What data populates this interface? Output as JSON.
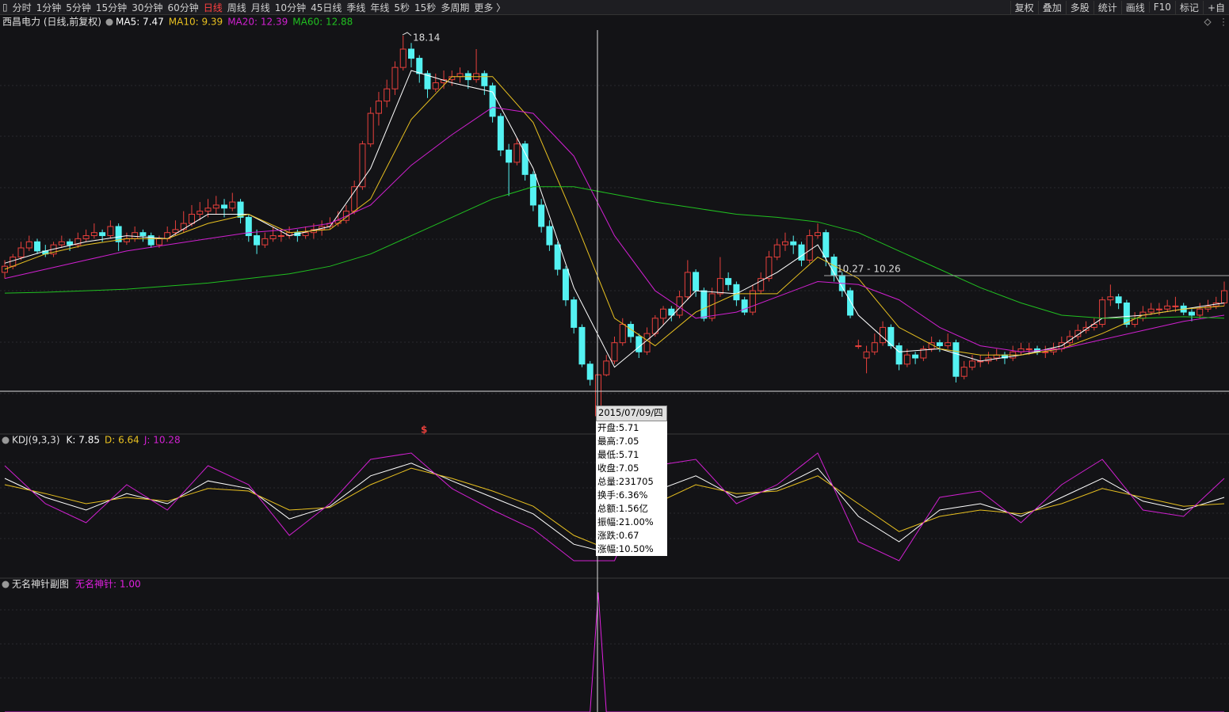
{
  "toolbar": {
    "left": [
      "分时",
      "1分钟",
      "5分钟",
      "15分钟",
      "30分钟",
      "60分钟",
      "日线",
      "周线",
      "月线",
      "10分钟",
      "45日线",
      "季线",
      "年线",
      "5秒",
      "15秒",
      "多周期",
      "更多 〉"
    ],
    "active_index": 6,
    "right": [
      "复权",
      "叠加",
      "多股",
      "统计",
      "画线",
      "F10",
      "标记",
      "+自"
    ]
  },
  "main_chart": {
    "title": "西昌电力 (日线,前复权)",
    "peak_label": "18.14",
    "range_label": "10.27 - 10.26",
    "signal": "$",
    "up_color": "#e8403c",
    "down_color": "#54f2f2",
    "candles": [
      [
        10.4,
        10.8,
        10.2,
        10.6
      ],
      [
        10.6,
        11.0,
        10.5,
        10.9
      ],
      [
        10.9,
        11.4,
        10.8,
        11.2
      ],
      [
        11.2,
        11.6,
        11.1,
        11.4
      ],
      [
        11.4,
        11.5,
        11.0,
        11.1
      ],
      [
        11.1,
        11.3,
        10.9,
        11.0
      ],
      [
        11.0,
        11.4,
        10.9,
        11.3
      ],
      [
        11.3,
        11.6,
        11.2,
        11.4
      ],
      [
        11.4,
        11.5,
        11.1,
        11.3
      ],
      [
        11.3,
        11.7,
        11.2,
        11.5
      ],
      [
        11.5,
        11.8,
        11.4,
        11.6
      ],
      [
        11.6,
        12.0,
        11.5,
        11.7
      ],
      [
        11.7,
        11.8,
        11.4,
        11.6
      ],
      [
        11.6,
        12.1,
        11.5,
        11.9
      ],
      [
        11.9,
        12.0,
        11.1,
        11.4
      ],
      [
        11.4,
        11.7,
        11.3,
        11.5
      ],
      [
        11.5,
        11.9,
        11.4,
        11.7
      ],
      [
        11.7,
        11.8,
        11.4,
        11.6
      ],
      [
        11.6,
        11.7,
        11.2,
        11.3
      ],
      [
        11.3,
        11.6,
        11.2,
        11.5
      ],
      [
        11.5,
        11.9,
        11.4,
        11.7
      ],
      [
        11.7,
        12.1,
        11.6,
        11.8
      ],
      [
        11.8,
        12.4,
        11.7,
        12.0
      ],
      [
        12.0,
        12.6,
        11.9,
        12.3
      ],
      [
        12.3,
        12.7,
        12.1,
        12.4
      ],
      [
        12.4,
        12.8,
        12.2,
        12.5
      ],
      [
        12.5,
        12.9,
        12.3,
        12.6
      ],
      [
        12.6,
        12.8,
        12.2,
        12.5
      ],
      [
        12.5,
        13.0,
        12.4,
        12.7
      ],
      [
        12.7,
        12.8,
        12.0,
        12.2
      ],
      [
        12.2,
        12.3,
        11.4,
        11.6
      ],
      [
        11.6,
        11.8,
        11.0,
        11.3
      ],
      [
        11.3,
        11.7,
        11.2,
        11.5
      ],
      [
        11.5,
        11.9,
        11.4,
        11.6
      ],
      [
        11.6,
        11.8,
        11.4,
        11.6
      ],
      [
        11.6,
        11.9,
        11.5,
        11.7
      ],
      [
        11.7,
        11.8,
        11.4,
        11.6
      ],
      [
        11.6,
        11.9,
        11.5,
        11.7
      ],
      [
        11.7,
        12.0,
        11.5,
        11.8
      ],
      [
        11.8,
        12.1,
        11.6,
        11.9
      ],
      [
        11.9,
        12.2,
        11.8,
        12.0
      ],
      [
        12.0,
        12.4,
        11.9,
        12.1
      ],
      [
        12.1,
        12.6,
        12.0,
        12.4
      ],
      [
        12.4,
        13.4,
        12.3,
        13.2
      ],
      [
        13.2,
        14.7,
        13.1,
        14.6
      ],
      [
        14.6,
        15.8,
        14.5,
        15.6
      ],
      [
        15.6,
        16.3,
        15.2,
        16.0
      ],
      [
        16.0,
        16.7,
        15.8,
        16.4
      ],
      [
        16.4,
        17.3,
        16.2,
        17.1
      ],
      [
        17.1,
        18.14,
        17.0,
        17.7
      ],
      [
        17.7,
        17.9,
        17.1,
        17.4
      ],
      [
        17.4,
        17.5,
        16.6,
        16.9
      ],
      [
        16.9,
        17.0,
        16.1,
        16.4
      ],
      [
        16.4,
        16.9,
        16.3,
        16.6
      ],
      [
        16.6,
        17.0,
        16.4,
        16.7
      ],
      [
        16.7,
        17.0,
        16.5,
        16.8
      ],
      [
        16.8,
        17.1,
        16.6,
        16.9
      ],
      [
        16.9,
        17.0,
        16.4,
        16.7
      ],
      [
        16.7,
        17.7,
        16.6,
        16.9
      ],
      [
        16.9,
        17.0,
        16.2,
        16.5
      ],
      [
        16.5,
        16.6,
        15.3,
        15.5
      ],
      [
        15.5,
        15.6,
        14.2,
        14.4
      ],
      [
        14.4,
        14.6,
        12.9,
        14.0
      ],
      [
        14.0,
        14.8,
        13.9,
        14.6
      ],
      [
        14.6,
        14.7,
        13.4,
        13.6
      ],
      [
        13.6,
        13.7,
        12.4,
        12.6
      ],
      [
        12.6,
        12.8,
        11.7,
        11.9
      ],
      [
        11.9,
        12.1,
        11.1,
        11.3
      ],
      [
        11.3,
        11.4,
        10.3,
        10.5
      ],
      [
        10.5,
        10.6,
        9.3,
        9.5
      ],
      [
        9.5,
        9.6,
        8.4,
        8.6
      ],
      [
        8.6,
        8.7,
        7.3,
        7.4
      ],
      [
        7.4,
        7.5,
        6.7,
        6.9
      ],
      [
        5.71,
        7.05,
        5.71,
        7.05
      ],
      [
        7.05,
        7.7,
        7.0,
        7.5
      ],
      [
        7.5,
        8.3,
        7.4,
        8.1
      ],
      [
        8.1,
        8.9,
        8.0,
        8.7
      ],
      [
        8.7,
        8.8,
        8.1,
        8.3
      ],
      [
        8.3,
        8.4,
        7.6,
        7.8
      ],
      [
        7.8,
        8.6,
        7.7,
        8.4
      ],
      [
        8.4,
        9.0,
        8.3,
        8.9
      ],
      [
        8.9,
        9.3,
        8.7,
        9.2
      ],
      [
        9.2,
        9.3,
        8.8,
        9.0
      ],
      [
        9.0,
        9.8,
        8.9,
        9.6
      ],
      [
        9.6,
        10.8,
        9.5,
        10.4
      ],
      [
        10.4,
        10.5,
        9.6,
        9.8
      ],
      [
        9.8,
        9.9,
        8.8,
        8.9
      ],
      [
        8.9,
        9.9,
        8.8,
        9.7
      ],
      [
        9.7,
        10.9,
        9.6,
        10.2
      ],
      [
        10.2,
        10.4,
        9.8,
        10.0
      ],
      [
        10.0,
        10.1,
        9.3,
        9.5
      ],
      [
        9.5,
        9.6,
        9.0,
        9.1
      ],
      [
        9.1,
        10.0,
        9.0,
        9.8
      ],
      [
        9.8,
        10.4,
        9.7,
        10.2
      ],
      [
        10.2,
        11.1,
        10.1,
        10.9
      ],
      [
        10.9,
        11.5,
        10.8,
        11.3
      ],
      [
        11.3,
        11.7,
        11.1,
        11.4
      ],
      [
        11.4,
        11.6,
        11.0,
        11.3
      ],
      [
        11.3,
        11.4,
        10.6,
        10.8
      ],
      [
        10.8,
        11.8,
        10.7,
        11.6
      ],
      [
        11.6,
        12.0,
        11.5,
        11.7
      ],
      [
        11.7,
        11.8,
        10.6,
        10.9
      ],
      [
        10.9,
        11.0,
        10.1,
        10.3
      ],
      [
        10.3,
        10.4,
        9.6,
        9.8
      ],
      [
        9.8,
        9.9,
        8.9,
        9.0
      ],
      [
        8.0,
        8.2,
        7.9,
        8.0
      ],
      [
        7.6,
        8.0,
        7.1,
        7.8
      ],
      [
        7.8,
        8.4,
        7.7,
        8.1
      ],
      [
        8.1,
        8.8,
        8.0,
        8.6
      ],
      [
        8.6,
        8.7,
        7.9,
        8.0
      ],
      [
        8.0,
        8.1,
        7.2,
        7.4
      ],
      [
        7.4,
        7.9,
        7.3,
        7.7
      ],
      [
        7.7,
        7.8,
        7.4,
        7.6
      ],
      [
        7.6,
        8.0,
        7.5,
        7.9
      ],
      [
        7.9,
        8.3,
        7.8,
        8.1
      ],
      [
        8.1,
        8.2,
        7.8,
        8.0
      ],
      [
        8.0,
        8.4,
        7.9,
        8.1
      ],
      [
        8.1,
        8.2,
        6.8,
        7.0
      ],
      [
        7.0,
        7.5,
        6.9,
        7.3
      ],
      [
        7.3,
        7.7,
        7.2,
        7.5
      ],
      [
        7.5,
        7.7,
        7.3,
        7.5
      ],
      [
        7.5,
        7.8,
        7.4,
        7.6
      ],
      [
        7.6,
        7.9,
        7.5,
        7.7
      ],
      [
        7.7,
        7.8,
        7.4,
        7.6
      ],
      [
        7.6,
        8.0,
        7.5,
        7.8
      ],
      [
        7.8,
        8.1,
        7.7,
        7.9
      ],
      [
        7.9,
        8.1,
        7.7,
        7.9
      ],
      [
        7.9,
        8.0,
        7.7,
        7.8
      ],
      [
        7.8,
        8.0,
        7.6,
        7.8
      ],
      [
        7.8,
        8.1,
        7.7,
        7.9
      ],
      [
        7.9,
        8.3,
        7.8,
        8.1
      ],
      [
        8.1,
        8.5,
        8.0,
        8.3
      ],
      [
        8.3,
        8.7,
        8.2,
        8.5
      ],
      [
        8.5,
        8.8,
        8.4,
        8.6
      ],
      [
        8.6,
        8.9,
        8.5,
        8.7
      ],
      [
        8.7,
        9.6,
        8.6,
        9.5
      ],
      [
        9.5,
        10.0,
        9.3,
        9.6
      ],
      [
        9.6,
        9.7,
        9.2,
        9.4
      ],
      [
        9.4,
        9.5,
        8.6,
        8.7
      ],
      [
        8.7,
        9.1,
        8.6,
        8.9
      ],
      [
        8.9,
        9.3,
        8.8,
        9.1
      ],
      [
        9.1,
        9.4,
        9.0,
        9.2
      ],
      [
        9.2,
        9.4,
        9.0,
        9.2
      ],
      [
        9.2,
        9.5,
        9.1,
        9.3
      ],
      [
        9.3,
        9.6,
        9.1,
        9.3
      ],
      [
        9.3,
        9.4,
        9.0,
        9.1
      ],
      [
        9.1,
        9.2,
        8.8,
        9.0
      ],
      [
        9.0,
        9.4,
        8.9,
        9.2
      ],
      [
        9.2,
        9.5,
        9.1,
        9.3
      ],
      [
        9.3,
        9.6,
        9.2,
        9.4
      ],
      [
        9.4,
        10.1,
        9.3,
        9.8
      ]
    ],
    "ma_x": [
      0,
      5,
      10,
      15,
      20,
      25,
      30,
      35,
      40,
      45,
      50,
      55,
      60,
      65,
      70,
      75,
      80,
      85,
      90,
      95,
      100,
      105,
      110,
      115,
      120,
      125,
      130,
      135,
      140,
      145,
      150
    ],
    "ma_series": [
      {
        "label": "MA5: 7.47",
        "color": "#ffffff",
        "values": [
          10.7,
          11.1,
          11.4,
          11.6,
          11.5,
          12.3,
          12.3,
          11.6,
          11.9,
          13.8,
          17.0,
          16.6,
          16.3,
          13.8,
          9.9,
          7.3,
          8.4,
          9.8,
          9.7,
          10.4,
          11.3,
          9.0,
          7.8,
          7.9,
          7.5,
          7.7,
          8.0,
          8.9,
          9.0,
          9.2,
          9.4
        ]
      },
      {
        "label": "MA10: 9.39",
        "color": "#e8c020",
        "values": [
          10.5,
          11.0,
          11.3,
          11.5,
          11.5,
          12.0,
          12.3,
          11.7,
          11.8,
          12.8,
          15.4,
          16.8,
          16.8,
          15.3,
          12.2,
          8.9,
          8.0,
          9.1,
          9.7,
          9.7,
          10.9,
          10.2,
          8.6,
          7.9,
          7.7,
          7.7,
          7.9,
          8.4,
          9.0,
          9.2,
          9.3
        ]
      },
      {
        "label": "MA20: 12.39",
        "color": "#d020d0",
        "values": [
          10.2,
          10.5,
          10.8,
          11.1,
          11.3,
          11.5,
          11.7,
          11.8,
          12.0,
          12.6,
          13.9,
          14.9,
          15.8,
          15.6,
          14.2,
          11.6,
          9.8,
          8.9,
          9.1,
          9.6,
          10.1,
          10.0,
          9.5,
          8.6,
          8.0,
          7.8,
          7.9,
          8.2,
          8.5,
          8.8,
          9.0
        ]
      },
      {
        "label": "MA60: 12.88",
        "color": "#20c020",
        "values": [
          9.72,
          9.75,
          9.8,
          9.85,
          9.95,
          10.05,
          10.2,
          10.35,
          10.6,
          11.0,
          11.6,
          12.2,
          12.8,
          13.2,
          13.2,
          12.95,
          12.7,
          12.5,
          12.3,
          12.2,
          12.05,
          11.7,
          11.1,
          10.5,
          9.9,
          9.4,
          9.0,
          8.9,
          8.9,
          8.95,
          8.9
        ]
      }
    ]
  },
  "tooltip": {
    "date": "2015/07/09/四",
    "rows": [
      "开盘:5.71",
      "最高:7.05",
      "最低:5.71",
      "收盘:7.05",
      "总量:231705",
      "换手:6.36%",
      "总额:1.56亿",
      "振幅:21.00%",
      "涨跌:0.67",
      "涨幅:10.50%"
    ]
  },
  "kdj": {
    "title": "KDJ(9,3,3)",
    "x": [
      0,
      5,
      10,
      15,
      20,
      25,
      30,
      35,
      40,
      45,
      50,
      55,
      60,
      65,
      70,
      75,
      80,
      85,
      90,
      95,
      100,
      105,
      110,
      115,
      120,
      125,
      130,
      135,
      140,
      145,
      150
    ],
    "series": [
      {
        "label": "K: 7.85",
        "color": "#ffffff",
        "values": [
          70,
          55,
          45,
          58,
          50,
          68,
          62,
          38,
          48,
          72,
          82,
          68,
          55,
          42,
          18,
          10,
          60,
          72,
          55,
          62,
          78,
          40,
          20,
          45,
          50,
          40,
          55,
          70,
          52,
          45,
          55
        ]
      },
      {
        "label": "D: 6.64",
        "color": "#e8c020",
        "values": [
          65,
          58,
          50,
          55,
          52,
          62,
          60,
          45,
          47,
          65,
          78,
          70,
          60,
          48,
          25,
          12,
          50,
          65,
          58,
          60,
          72,
          50,
          28,
          40,
          45,
          42,
          50,
          62,
          55,
          48,
          50
        ]
      },
      {
        "label": "J: 10.28",
        "color": "#d020d0",
        "values": [
          80,
          50,
          35,
          65,
          45,
          80,
          65,
          25,
          50,
          85,
          90,
          62,
          45,
          30,
          5,
          5,
          80,
          85,
          50,
          65,
          90,
          20,
          5,
          55,
          60,
          35,
          65,
          85,
          45,
          40,
          70
        ]
      }
    ]
  },
  "needle": {
    "title": "无名神针副图",
    "series": [
      {
        "label": "无名神针: 1.00",
        "color": "#e020e0",
        "x": [
          0,
          72,
          73,
          74,
          150
        ],
        "values": [
          0,
          0,
          1,
          0,
          0
        ]
      }
    ]
  }
}
